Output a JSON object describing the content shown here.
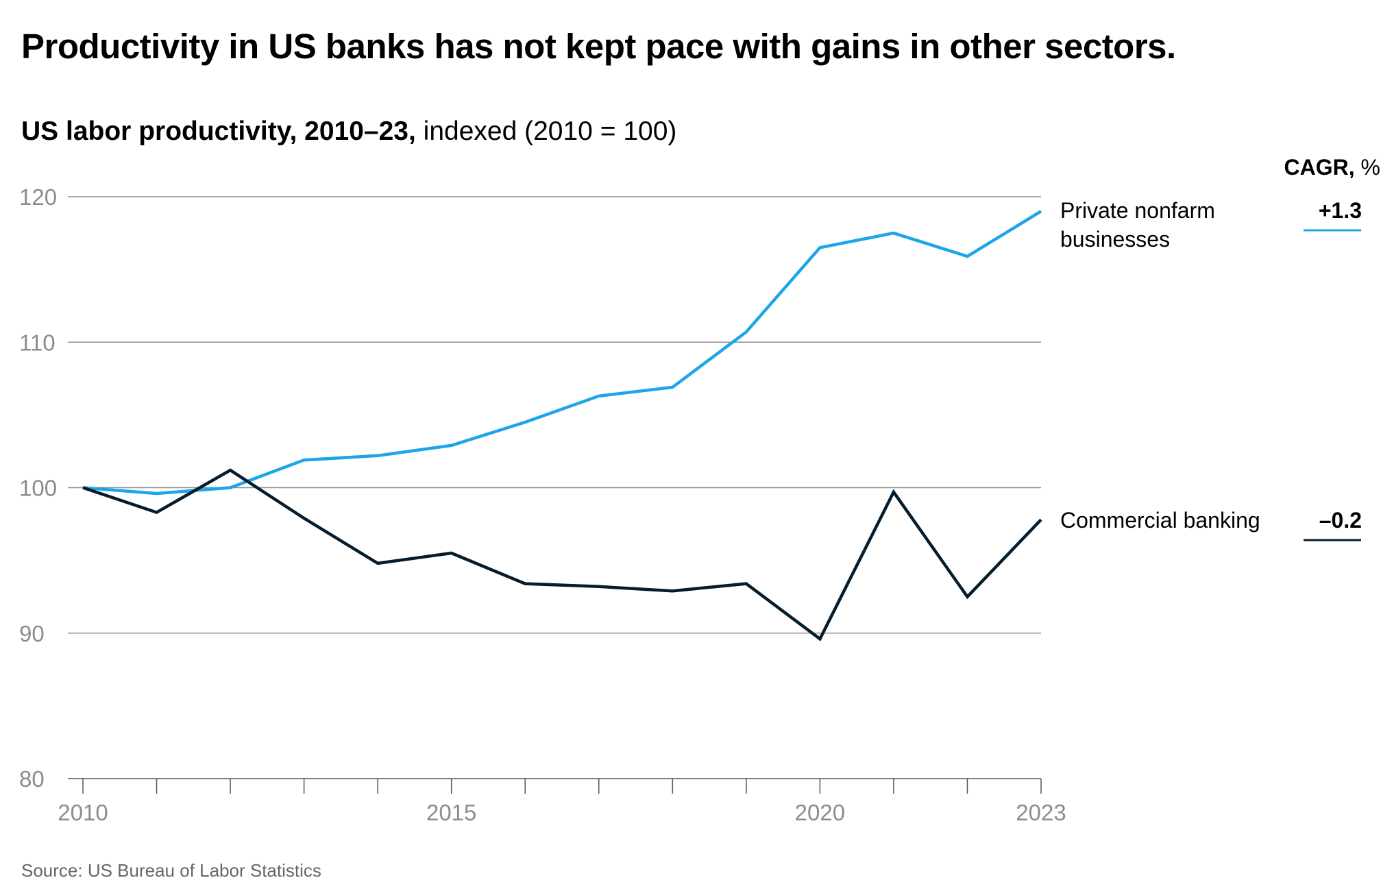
{
  "title": "Productivity in US banks has not kept pace with gains in other sectors.",
  "subtitle_bold": "US labor productivity, 2010–23,",
  "subtitle_normal": "indexed (2010 = 100)",
  "cagr_header_bold": "CAGR,",
  "cagr_header_unit": "%",
  "source": "Source: US Bureau of Labor Statistics",
  "colors": {
    "private_nonfarm": "#1ba6e8",
    "commercial_banking": "#051c2c",
    "grid": "#8f8f8f"
  },
  "chart_data": {
    "type": "line",
    "x": [
      2010,
      2011,
      2012,
      2013,
      2014,
      2015,
      2016,
      2017,
      2018,
      2019,
      2020,
      2021,
      2022,
      2023
    ],
    "x_tick_labels": [
      "2010",
      "2015",
      "2020",
      "2023"
    ],
    "x_tick_values": [
      2010,
      2015,
      2020,
      2023
    ],
    "y_tick_labels": [
      "80",
      "90",
      "100",
      "110",
      "120"
    ],
    "y_tick_values": [
      80,
      90,
      100,
      110,
      120
    ],
    "ylim": [
      80,
      120
    ],
    "grid": true,
    "series": [
      {
        "name": "Private nonfarm businesses",
        "label_lines": [
          "Private nonfarm",
          "businesses"
        ],
        "cagr": "+1.3",
        "color": "#1ba6e8",
        "values": [
          100,
          99.6,
          100,
          101.9,
          102.2,
          102.9,
          104.5,
          106.3,
          106.9,
          110.7,
          116.5,
          117.5,
          115.9,
          119
        ]
      },
      {
        "name": "Commercial banking",
        "label_lines": [
          "Commercial banking"
        ],
        "cagr": "–0.2",
        "color": "#051c2c",
        "values": [
          100,
          98.3,
          101.2,
          97.9,
          94.8,
          95.5,
          93.4,
          93.2,
          92.9,
          93.4,
          89.6,
          99.7,
          92.5,
          97.8
        ]
      }
    ]
  }
}
